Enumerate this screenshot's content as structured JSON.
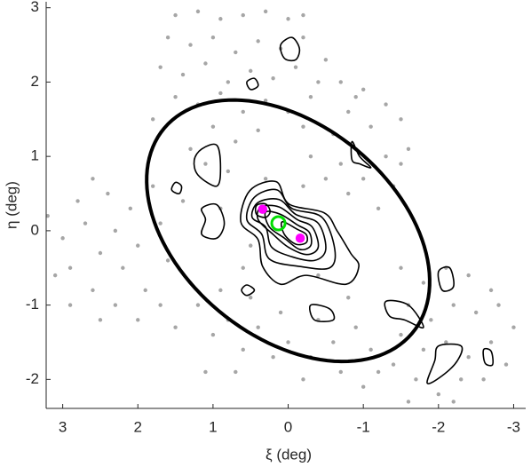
{
  "chart_data": {
    "type": "scatter-contour",
    "xlabel": "ξ (deg)",
    "ylabel": "η (deg)",
    "xlim": [
      3.22,
      -3.16
    ],
    "ylim": [
      -2.39,
      3.08
    ],
    "xticks": [
      3,
      2,
      1,
      0,
      -1,
      -2,
      -3
    ],
    "yticks": [
      -2,
      -1,
      0,
      1,
      2,
      3
    ],
    "points": {
      "color": "#a6a6a6",
      "x": [
        1.5,
        1.2,
        0.9,
        0.6,
        0.3,
        0.0,
        -0.2,
        1.6,
        1.3,
        1.0,
        0.7,
        0.4,
        0.1,
        -0.2,
        -0.5,
        1.7,
        1.4,
        1.1,
        0.8,
        0.5,
        0.2,
        -0.1,
        -0.4,
        1.5,
        1.2,
        0.9,
        0.6,
        0.3,
        0.0,
        -0.3,
        1.8,
        1.0,
        0.4,
        -0.2,
        0.7,
        1.3,
        -0.7,
        -1.0,
        -1.3,
        -0.8,
        -1.1,
        -1.5,
        -0.6,
        -0.9,
        -1.3,
        -1.6,
        -0.7,
        -1.0,
        -1.4,
        -0.8,
        -1.2,
        -0.5,
        -0.9,
        -1.5,
        3.2,
        3.0,
        2.8,
        2.9,
        2.6,
        2.7,
        2.5,
        2.6,
        2.4,
        2.3,
        2.2,
        2.3,
        2.1,
        2.0,
        1.9,
        2.0,
        1.8,
        1.7,
        1.6,
        1.7,
        1.5,
        2.9,
        3.1,
        2.5,
        1.4,
        1.3,
        1.2,
        1.0,
        0.8,
        0.6,
        0.4,
        0.2,
        0.0,
        -0.3,
        -0.6,
        -0.9,
        -1.1,
        0.9,
        0.5,
        0.1,
        -0.4,
        -0.8,
        1.1,
        -0.2,
        -1.2,
        -1.0,
        0.7,
        -0.7,
        -1.5,
        -1.8,
        -2.1,
        -2.4,
        -1.6,
        -1.9,
        -2.2,
        -2.5,
        -2.8,
        -3.0,
        -1.5,
        -1.8,
        -2.1,
        -2.4,
        -2.7,
        -2.9,
        -1.4,
        -1.7,
        -2.0,
        -2.3,
        -2.6,
        -1.6,
        -2.2,
        -2.7,
        0.8,
        0.3,
        -0.2,
        0.9,
        -0.4,
        0.6,
        1.1,
        -0.3,
        0.5
      ],
      "y": [
        2.9,
        2.95,
        2.85,
        2.9,
        2.95,
        2.85,
        2.9,
        2.6,
        2.5,
        2.6,
        2.4,
        2.55,
        2.45,
        2.6,
        2.3,
        2.2,
        2.1,
        2.25,
        2.0,
        2.15,
        2.05,
        2.2,
        2.0,
        1.8,
        1.7,
        1.85,
        1.6,
        1.75,
        1.6,
        1.8,
        1.5,
        1.4,
        1.35,
        1.4,
        1.2,
        1.1,
        2.0,
        1.9,
        1.7,
        1.6,
        1.4,
        1.5,
        1.3,
        1.1,
        1.0,
        1.1,
        0.9,
        0.7,
        0.6,
        0.5,
        0.3,
        0.7,
        1.8,
        0.9,
        0.2,
        -0.1,
        0.4,
        -0.5,
        0.7,
        0.1,
        -0.3,
        -0.8,
        0.5,
        0.0,
        -0.5,
        -1.0,
        0.3,
        -0.2,
        -0.8,
        -1.2,
        0.6,
        0.1,
        -0.4,
        -1.0,
        -1.3,
        -1.0,
        -0.6,
        -1.2,
        0.4,
        -0.7,
        -1.0,
        -1.4,
        -1.2,
        -1.6,
        -1.3,
        -1.7,
        -1.5,
        -1.7,
        -1.5,
        -1.3,
        -1.6,
        -0.8,
        -0.9,
        -1.1,
        -1.2,
        -0.9,
        -1.9,
        -2.0,
        -1.9,
        -2.1,
        -1.9,
        -1.9,
        -0.5,
        -0.7,
        -0.5,
        -0.6,
        -1.0,
        -1.2,
        -1.0,
        -1.1,
        -1.0,
        -1.3,
        -1.4,
        -1.6,
        -1.5,
        -1.7,
        -1.5,
        -1.8,
        -1.8,
        -2.0,
        -2.2,
        -2.0,
        -2.0,
        -2.3,
        -2.3,
        -0.8,
        0.8,
        0.7,
        0.6,
        0.3,
        -0.6,
        -0.5,
        0.9,
        1.0,
        -0.2
      ]
    },
    "ellipse": {
      "center_x": 0,
      "center_y": 0,
      "a": 2.15,
      "b": 1.42,
      "angle": 40,
      "color": "#000000"
    },
    "contour_color": "#000000",
    "contours": [
      {
        "x": [
          0.51,
          0.16,
          -0.01,
          -0.48,
          -0.65,
          -0.83,
          -0.94,
          -0.77,
          -0.24,
          0.1,
          0.34,
          0.4,
          0.63
        ],
        "y": [
          0.54,
          0.66,
          0.36,
          0.24,
          0.0,
          -0.3,
          -0.48,
          -0.72,
          -0.6,
          -0.72,
          -0.48,
          -0.12,
          0.12
        ]
      },
      {
        "x": [
          0.45,
          0.15,
          -0.05,
          -0.45,
          -0.62,
          -0.55,
          -0.15,
          0.25,
          0.35,
          0.55
        ],
        "y": [
          0.45,
          0.55,
          0.3,
          0.18,
          -0.25,
          -0.5,
          -0.48,
          -0.38,
          -0.05,
          0.15
        ]
      },
      {
        "x": [
          0.4,
          0.12,
          -0.1,
          -0.4,
          -0.5,
          -0.35,
          -0.05,
          0.22,
          0.3,
          0.48
        ],
        "y": [
          0.38,
          0.42,
          0.22,
          0.1,
          -0.25,
          -0.4,
          -0.35,
          -0.22,
          0.05,
          0.18
        ]
      },
      {
        "x": [
          0.36,
          0.12,
          -0.12,
          -0.32,
          -0.4,
          -0.25,
          0.0,
          0.2,
          0.4
        ],
        "y": [
          0.32,
          0.32,
          0.15,
          0.05,
          -0.22,
          -0.32,
          -0.22,
          -0.05,
          0.15
        ]
      },
      {
        "x": [
          0.3,
          0.1,
          -0.12,
          -0.28,
          -0.3,
          -0.15,
          0.05,
          0.25
        ],
        "y": [
          0.25,
          0.22,
          0.08,
          -0.02,
          -0.2,
          -0.25,
          -0.1,
          0.05
        ]
      },
      {
        "x": [
          0.08,
          -0.12,
          -0.24,
          -0.24,
          -0.1,
          0.05
        ],
        "y": [
          0.12,
          0.02,
          -0.05,
          -0.16,
          -0.18,
          -0.05
        ]
      },
      {
        "x": [
          0.42,
          0.3,
          0.24,
          0.3,
          0.42
        ],
        "y": [
          0.34,
          0.36,
          0.26,
          0.18,
          0.22
        ]
      },
      {
        "x": [
          0.1,
          -0.05,
          -0.15,
          -0.1,
          0.05
        ],
        "y": [
          2.5,
          2.6,
          2.45,
          2.3,
          2.32
        ]
      },
      {
        "x": [
          0.55,
          0.45,
          0.4,
          0.5
        ],
        "y": [
          2.0,
          2.05,
          1.95,
          1.9
        ]
      },
      {
        "x": [
          -0.85,
          -0.95,
          -1.1,
          -0.95,
          -0.85
        ],
        "y": [
          1.2,
          1.0,
          0.85,
          0.9,
          0.95
        ]
      },
      {
        "x": [
          1.15,
          0.95,
          0.9,
          0.95,
          1.2,
          1.25
        ],
        "y": [
          1.1,
          1.15,
          0.85,
          0.6,
          0.75,
          0.95
        ]
      },
      {
        "x": [
          1.5,
          1.42,
          1.45,
          1.55
        ],
        "y": [
          0.65,
          0.6,
          0.5,
          0.55
        ]
      },
      {
        "x": [
          1.15,
          0.95,
          0.85,
          0.95,
          1.15,
          1.1
        ],
        "y": [
          0.3,
          0.35,
          0.1,
          -0.1,
          -0.05,
          0.15
        ]
      },
      {
        "x": [
          0.55,
          0.45,
          0.55,
          0.62
        ],
        "y": [
          -0.73,
          -0.8,
          -0.87,
          -0.8
        ]
      },
      {
        "x": [
          -0.3,
          -0.55,
          -0.6,
          -0.35
        ],
        "y": [
          -1.0,
          -1.05,
          -1.2,
          -1.2
        ]
      },
      {
        "x": [
          -1.3,
          -1.6,
          -1.8,
          -1.55,
          -1.35
        ],
        "y": [
          -0.95,
          -1.0,
          -1.3,
          -1.2,
          -1.15
        ]
      },
      {
        "x": [
          -2.0,
          -2.15,
          -2.2,
          -2.05
        ],
        "y": [
          -0.55,
          -0.5,
          -0.75,
          -0.8
        ]
      },
      {
        "x": [
          -2.0,
          -2.3,
          -2.25,
          -2.05,
          -1.85,
          -1.95
        ],
        "y": [
          -1.55,
          -1.55,
          -1.75,
          -1.95,
          -2.05,
          -1.75
        ]
      },
      {
        "x": [
          -2.6,
          -2.7,
          -2.72,
          -2.62
        ],
        "y": [
          -1.6,
          -1.62,
          -1.8,
          -1.78
        ]
      }
    ],
    "markers": [
      {
        "x": 0.34,
        "y": 0.29,
        "color": "#ff00ff",
        "style": "filled"
      },
      {
        "x": -0.16,
        "y": -0.1,
        "color": "#ff00ff",
        "style": "filled"
      },
      {
        "x": 0.13,
        "y": 0.1,
        "color": "#00dd00",
        "style": "ring"
      }
    ]
  }
}
